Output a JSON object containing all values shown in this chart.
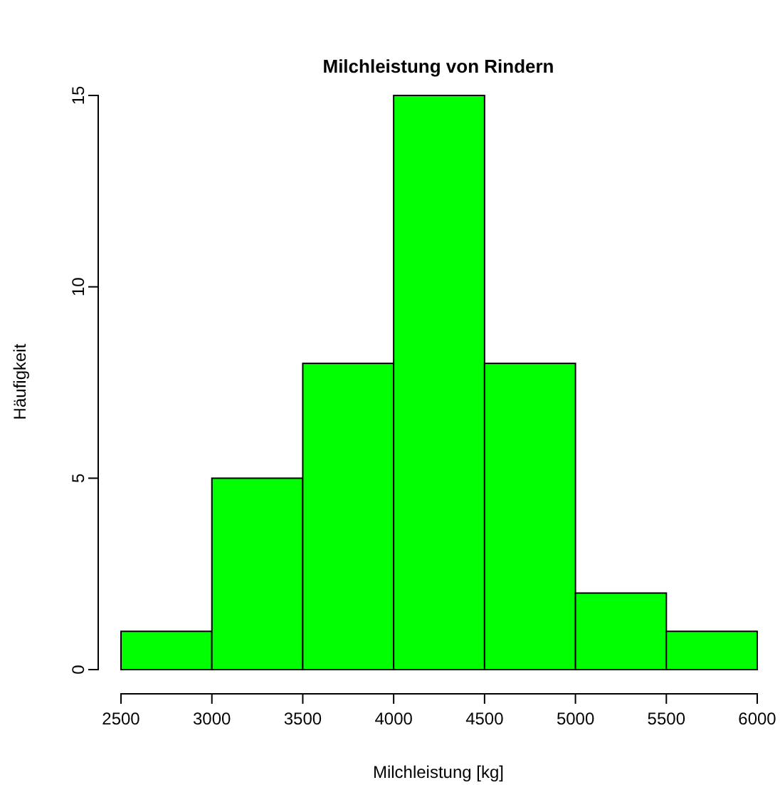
{
  "chart_data": {
    "type": "histogram",
    "title": "Milchleistung von Rindern",
    "xlabel": "Milchleistung [kg]",
    "ylabel": "Häufigkeit",
    "bins": [
      2500,
      3000,
      3500,
      4000,
      4500,
      5000,
      5500,
      6000
    ],
    "values": [
      1,
      5,
      8,
      15,
      8,
      2,
      1
    ],
    "color": "#00ff00",
    "xlim": [
      2500,
      6000
    ],
    "xticks": [
      2500,
      3000,
      3500,
      4000,
      4500,
      5000,
      5500,
      6000
    ],
    "ylim": [
      0,
      15
    ],
    "yticks": [
      0,
      5,
      10,
      15
    ]
  }
}
